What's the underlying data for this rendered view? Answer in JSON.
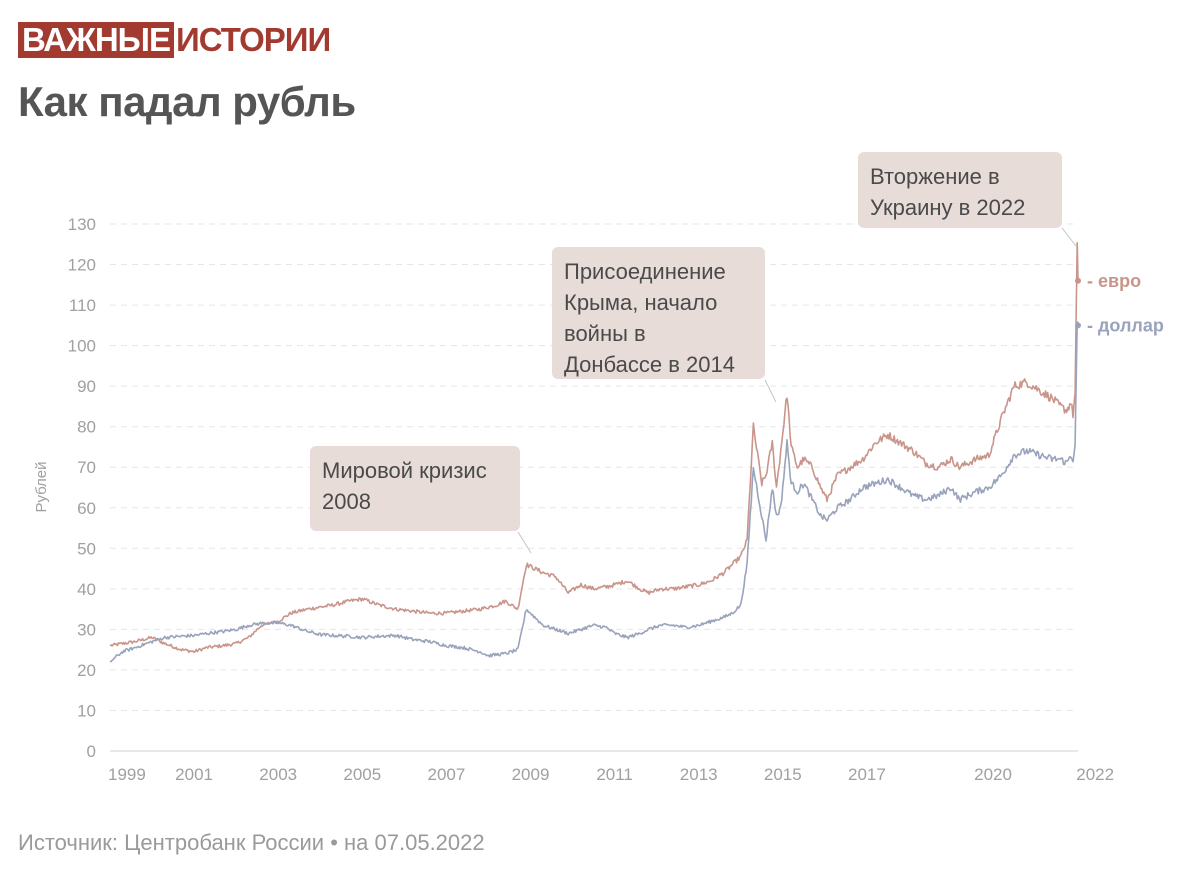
{
  "header": {
    "logo_part1": "ВАЖНЫЕ",
    "logo_part2": "ИСТОРИИ",
    "title": "Как падал рубль"
  },
  "footer": {
    "source": "Источник: Центробанк России • на 07.05.2022"
  },
  "annotations": {
    "crisis": "Мировой кризис\n2008",
    "crimea": "Присоединение\nКрыма, начало\nвойны в\nДонбассе в 2014",
    "invasion": "Вторжение в\nУкраину в 2022"
  },
  "colors": {
    "euro": "#c9958b",
    "usd": "#9aa3bc",
    "brand": "#a33a30",
    "annotation_bg": "#e7dcd8"
  },
  "chart_data": {
    "type": "line",
    "title": "Как падал рубль",
    "xlabel": "",
    "ylabel": "Рублей",
    "ylim": [
      0,
      130
    ],
    "y_ticks": [
      0,
      10,
      20,
      30,
      40,
      50,
      60,
      70,
      80,
      90,
      100,
      110,
      120,
      130
    ],
    "x_tick_labels": [
      "1999",
      "2001",
      "2003",
      "2005",
      "2007",
      "2009",
      "2011",
      "2013",
      "2015",
      "2017",
      "2020",
      "2022"
    ],
    "x_range": [
      "1999",
      "2022"
    ],
    "grid": "horizontal dashed",
    "series": [
      {
        "name": "евро",
        "label": "- евро",
        "color": "#c9958b",
        "x": [
          1999.0,
          1999.3,
          1999.6,
          2000.0,
          2000.3,
          2000.7,
          2001.0,
          2001.3,
          2001.7,
          2002.0,
          2002.3,
          2002.6,
          2003.0,
          2003.3,
          2003.7,
          2004.0,
          2004.3,
          2004.7,
          2005.0,
          2005.4,
          2005.8,
          2006.2,
          2006.6,
          2007.0,
          2007.4,
          2007.8,
          2008.0,
          2008.2,
          2008.4,
          2008.7,
          2008.9,
          2009.1,
          2009.3,
          2009.6,
          2009.9,
          2010.2,
          2010.5,
          2010.8,
          2011.0,
          2011.3,
          2011.6,
          2011.8,
          2012.1,
          2012.4,
          2012.7,
          2013.0,
          2013.3,
          2013.6,
          2013.8,
          2014.0,
          2014.15,
          2014.3,
          2014.5,
          2014.6,
          2014.75,
          2014.85,
          2014.95,
          2015.1,
          2015.2,
          2015.35,
          2015.5,
          2015.7,
          2015.9,
          2016.05,
          2016.3,
          2016.6,
          2016.9,
          2017.2,
          2017.5,
          2017.8,
          2018.1,
          2018.4,
          2018.7,
          2019.0,
          2019.2,
          2019.4,
          2019.6,
          2019.9,
          2020.2,
          2020.5,
          2020.8,
          2021.1,
          2021.4,
          2021.6,
          2021.75,
          2021.85,
          2021.9,
          2021.95,
          2022.0,
          2022.02
        ],
        "y": [
          26,
          26.5,
          27,
          28,
          26.5,
          25,
          24.5,
          25.5,
          26,
          26.5,
          28,
          31,
          32,
          34,
          35,
          35.5,
          36,
          37,
          37.5,
          36,
          35,
          34.5,
          34,
          34,
          34.5,
          35,
          35.5,
          36,
          37,
          35,
          46,
          45,
          44,
          43,
          39,
          41,
          40,
          40.5,
          41,
          42,
          40,
          39,
          40,
          40,
          40.5,
          41,
          42,
          44,
          46,
          48,
          52,
          80,
          66,
          68,
          76,
          65,
          74,
          88,
          75,
          70,
          72,
          70,
          65,
          62,
          68,
          70,
          72,
          76,
          78,
          76,
          74,
          71,
          70,
          72,
          70,
          71,
          72,
          73,
          82,
          90,
          91,
          89,
          87,
          85,
          84,
          86,
          83,
          88,
          124,
          116
        ]
      },
      {
        "name": "доллар",
        "label": "- доллар",
        "color": "#9aa3bc",
        "x": [
          1999.0,
          1999.3,
          1999.6,
          2000.0,
          2000.3,
          2000.7,
          2001.0,
          2001.3,
          2001.7,
          2002.0,
          2002.3,
          2002.6,
          2003.0,
          2003.3,
          2003.7,
          2004.0,
          2004.3,
          2004.7,
          2005.0,
          2005.4,
          2005.8,
          2006.2,
          2006.6,
          2007.0,
          2007.4,
          2007.8,
          2008.0,
          2008.2,
          2008.4,
          2008.7,
          2008.9,
          2009.1,
          2009.3,
          2009.6,
          2009.9,
          2010.2,
          2010.5,
          2010.8,
          2011.0,
          2011.3,
          2011.6,
          2011.8,
          2012.1,
          2012.4,
          2012.7,
          2013.0,
          2013.3,
          2013.6,
          2013.8,
          2014.0,
          2014.15,
          2014.3,
          2014.5,
          2014.6,
          2014.75,
          2014.85,
          2014.95,
          2015.1,
          2015.2,
          2015.35,
          2015.5,
          2015.7,
          2015.9,
          2016.05,
          2016.3,
          2016.6,
          2016.9,
          2017.2,
          2017.5,
          2017.8,
          2018.1,
          2018.4,
          2018.7,
          2019.0,
          2019.2,
          2019.4,
          2019.6,
          2019.9,
          2020.2,
          2020.5,
          2020.8,
          2021.1,
          2021.4,
          2021.6,
          2021.75,
          2021.85,
          2021.9,
          2021.95,
          2022.0,
          2022.02
        ],
        "y": [
          22,
          24.5,
          25.5,
          27,
          28,
          28.3,
          28.5,
          29,
          29.5,
          30,
          31,
          31.5,
          31.6,
          31,
          29.5,
          28.7,
          28.5,
          28.3,
          28,
          28.3,
          28.5,
          27.5,
          27,
          26,
          25.5,
          24.5,
          23.5,
          23.8,
          24,
          25,
          35,
          33,
          31,
          30,
          29,
          30,
          31,
          30.5,
          29,
          28,
          29,
          30,
          31,
          31,
          30.5,
          31,
          32,
          33,
          34,
          36,
          46,
          70,
          58,
          52,
          65,
          58,
          60,
          76,
          66,
          64,
          66,
          62,
          58,
          57,
          60,
          62,
          65,
          66,
          67,
          65,
          63,
          62,
          63,
          65,
          62,
          63,
          64,
          65,
          68,
          73,
          74,
          73,
          72,
          72,
          71,
          73,
          72,
          75,
          105,
          105
        ]
      }
    ]
  }
}
